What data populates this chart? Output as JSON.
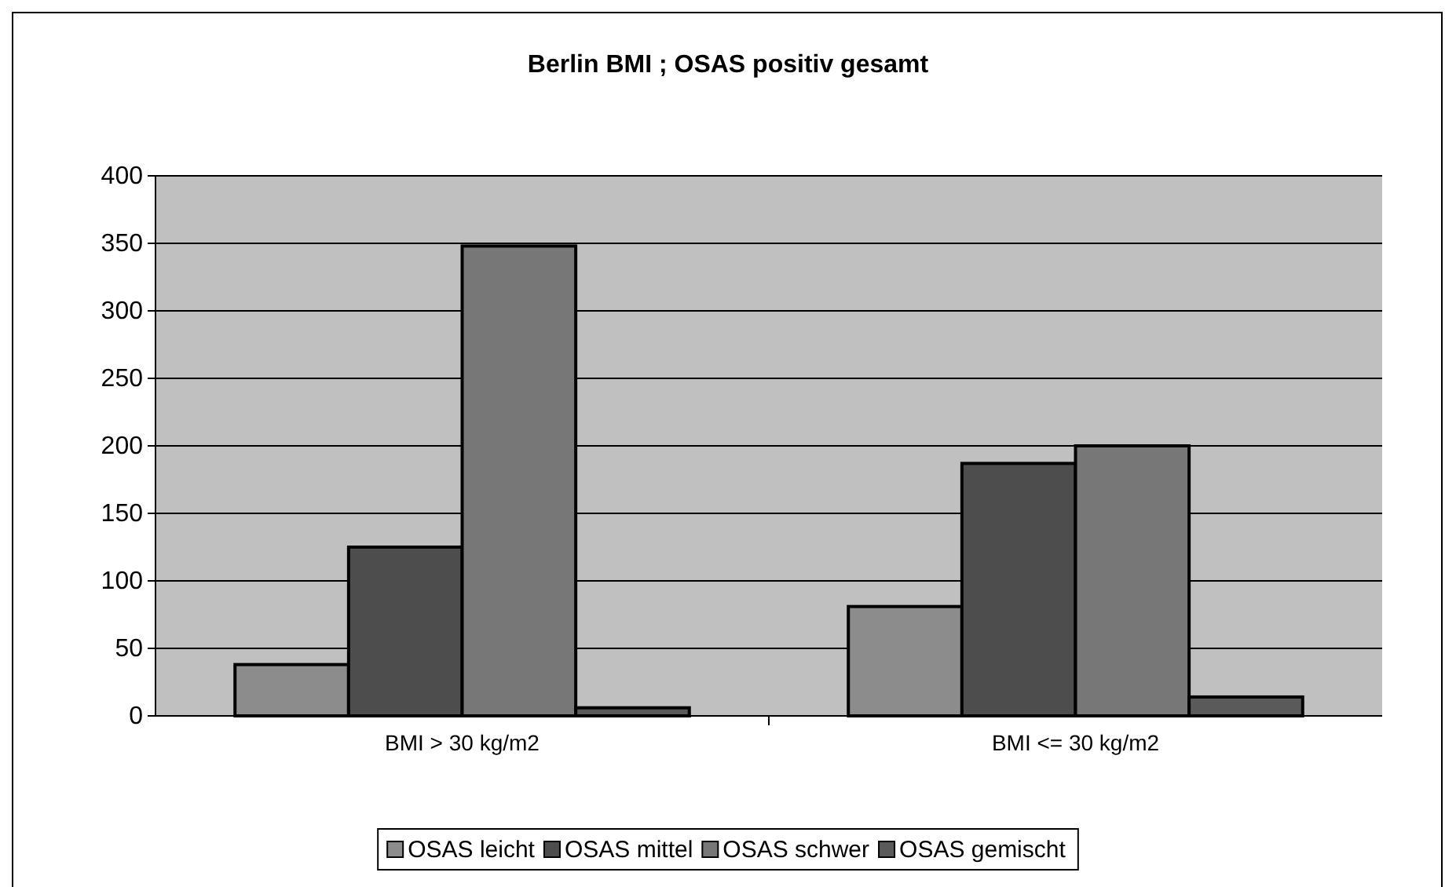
{
  "chart_data": {
    "type": "bar",
    "title": "Berlin BMI ; OSAS positiv gesamt",
    "categories": [
      "BMI > 30 kg/m2",
      "BMI <= 30 kg/m2"
    ],
    "series": [
      {
        "name": "OSAS leicht",
        "color": "#8c8c8c",
        "values": [
          38,
          81
        ]
      },
      {
        "name": "OSAS mittel",
        "color": "#4d4d4d",
        "values": [
          125,
          187
        ]
      },
      {
        "name": "OSAS schwer",
        "color": "#777777",
        "values": [
          348,
          200
        ]
      },
      {
        "name": "OSAS gemischt",
        "color": "#5a5a5a",
        "values": [
          6,
          14
        ]
      }
    ],
    "ylim": [
      0,
      400
    ],
    "yticks": [
      0,
      50,
      100,
      150,
      200,
      250,
      300,
      350,
      400
    ],
    "grid": "y",
    "legend": "bottom"
  }
}
